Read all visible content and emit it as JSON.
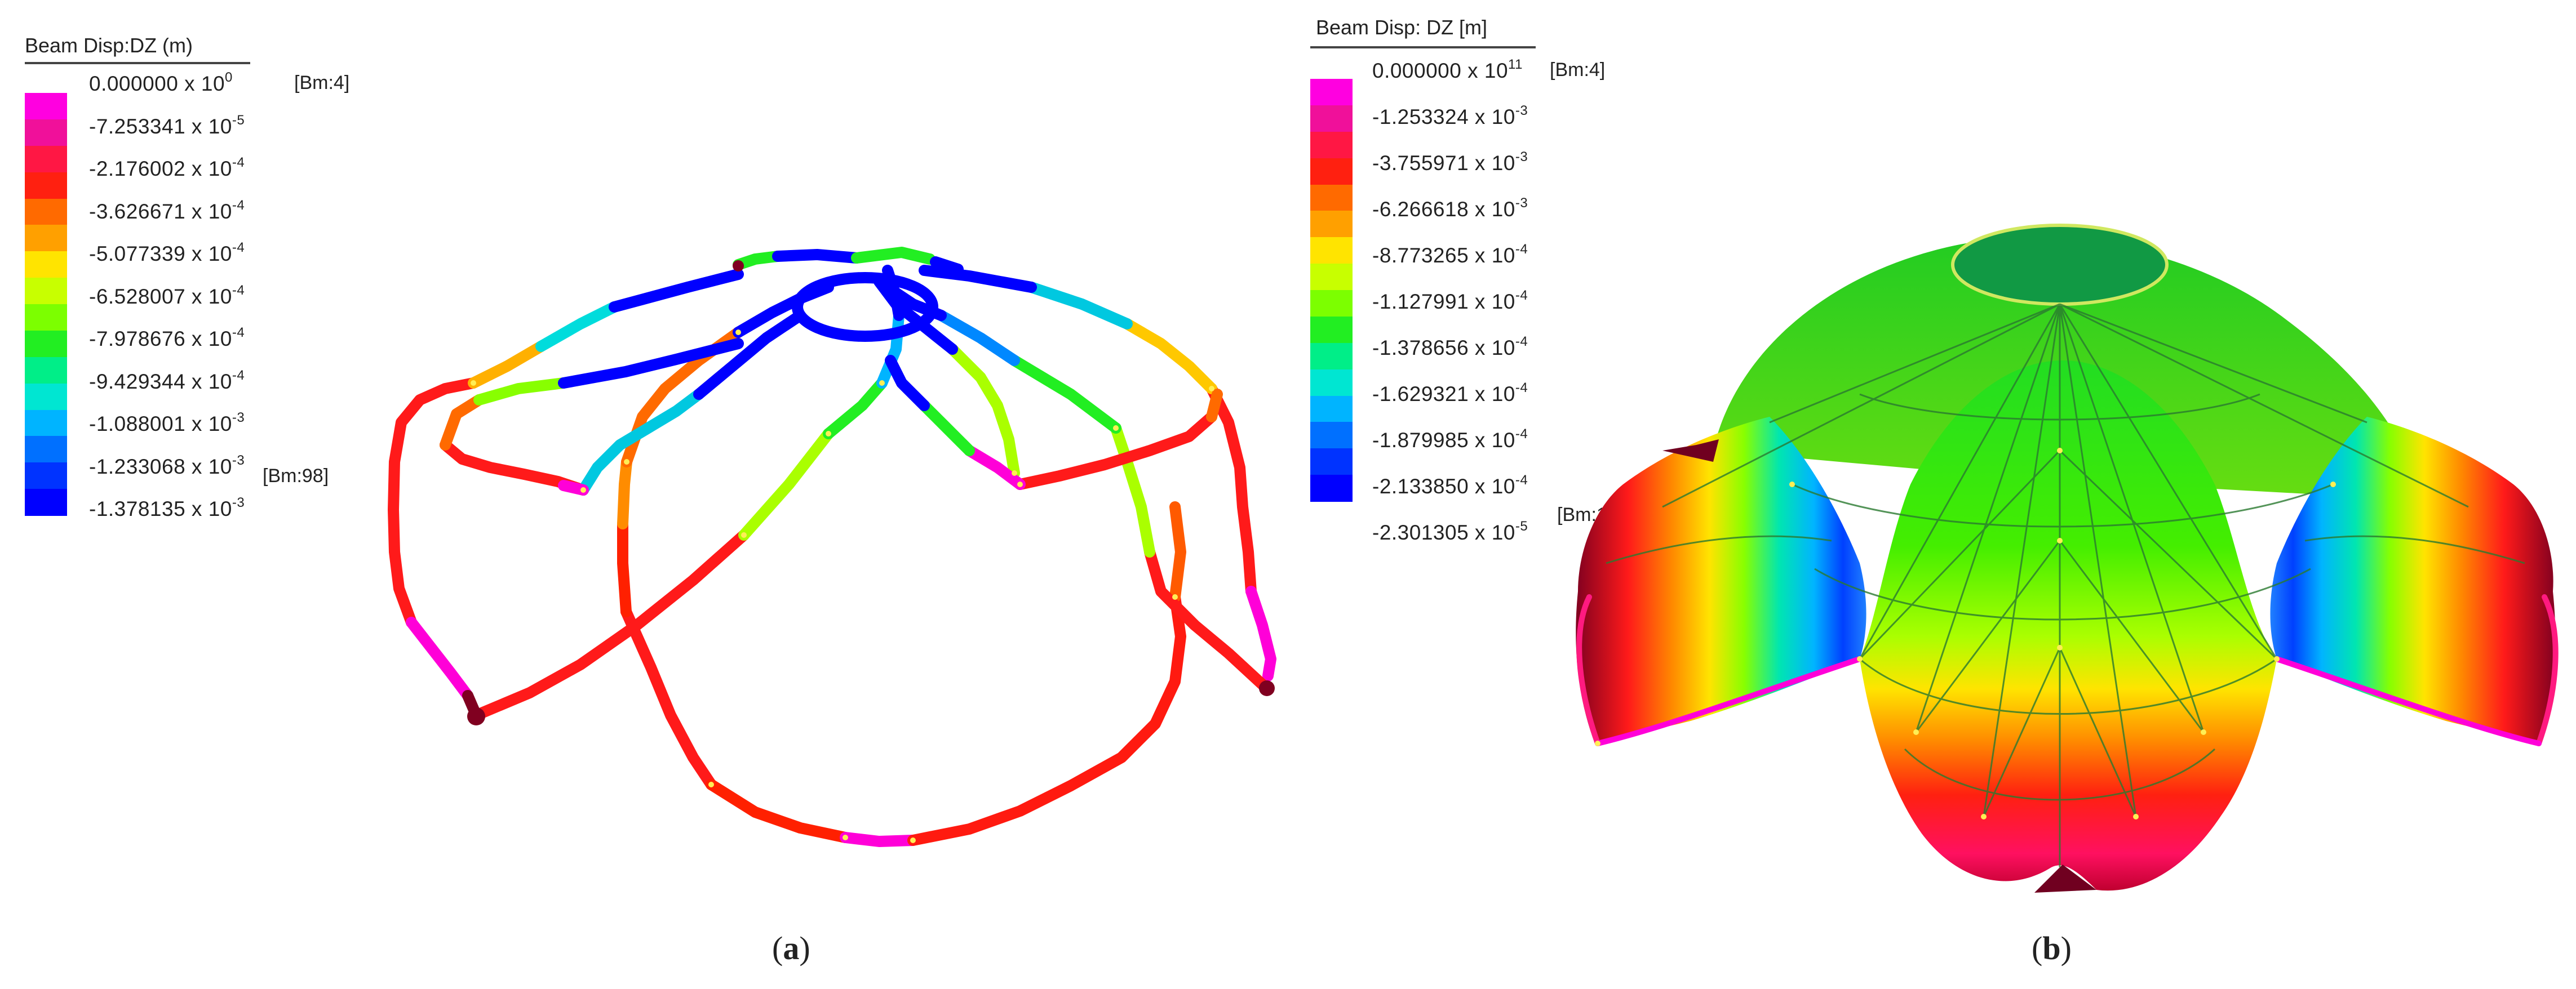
{
  "panel_a": {
    "legend": {
      "title": "Beam Disp:DZ  (m)",
      "max_tag": "[Bm:4]",
      "min_tag": "[Bm:98]",
      "ticks": [
        {
          "mantissa": "0.000000",
          "exp": "0"
        },
        {
          "mantissa": "-7.253341",
          "exp": "-5"
        },
        {
          "mantissa": "-2.176002",
          "exp": "-4"
        },
        {
          "mantissa": "-3.626671",
          "exp": "-4"
        },
        {
          "mantissa": "-5.077339",
          "exp": "-4"
        },
        {
          "mantissa": "-6.528007",
          "exp": "-4"
        },
        {
          "mantissa": "-7.978676",
          "exp": "-4"
        },
        {
          "mantissa": "-9.429344",
          "exp": "-4"
        },
        {
          "mantissa": "-1.088001",
          "exp": "-3"
        },
        {
          "mantissa": "-1.233068",
          "exp": "-3"
        },
        {
          "mantissa": "-1.378135",
          "exp": "-3"
        }
      ],
      "colors": [
        "#ff00e0",
        "#f0109a",
        "#ff1744",
        "#ff2010",
        "#ff6a00",
        "#ffa000",
        "#ffe400",
        "#c8ff00",
        "#7cff00",
        "#22ee22",
        "#00ee88",
        "#00e6d2",
        "#00b4ff",
        "#0070ff",
        "#0033ff",
        "#0000ff"
      ]
    },
    "caption": {
      "letter": "a"
    }
  },
  "panel_b": {
    "legend": {
      "title": "Beam Disp: DZ [m]",
      "max_tag": "[Bm:4]",
      "min_tag": "[Bm:10]",
      "ticks": [
        {
          "mantissa": "0.000000 x",
          "exp": "11"
        },
        {
          "mantissa": "-1.253324 x",
          "exp": "-3"
        },
        {
          "mantissa": "-3.755971 x",
          "exp": "-3"
        },
        {
          "mantissa": "-6.266618 x",
          "exp": "-3"
        },
        {
          "mantissa": "-8.773265 x",
          "exp": "-4"
        },
        {
          "mantissa": "-1.127991 x",
          "exp": "-4"
        },
        {
          "mantissa": "-1.378656 x",
          "exp": "-4"
        },
        {
          "mantissa": "-1.629321 x",
          "exp": "-4"
        },
        {
          "mantissa": "-1.879985 x",
          "exp": "-4"
        },
        {
          "mantissa": "-2.133850 x",
          "exp": "-4"
        },
        {
          "mantissa": "-2.301305 x",
          "exp": "-5"
        }
      ],
      "colors": [
        "#ff00e0",
        "#f0109a",
        "#ff1744",
        "#ff2010",
        "#ff6a00",
        "#ffa000",
        "#ffe400",
        "#c8ff00",
        "#7cff00",
        "#22ee22",
        "#00ee88",
        "#00e6d2",
        "#00b4ff",
        "#0070ff",
        "#0033ff",
        "#0000ff"
      ]
    },
    "caption": {
      "letter": "b"
    }
  }
}
